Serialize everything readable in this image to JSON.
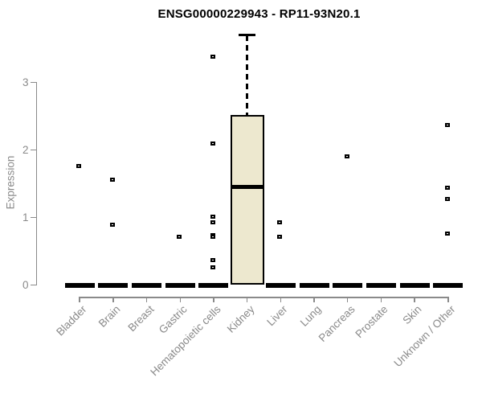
{
  "colors": {
    "box_fill": "#EDE8CF",
    "box_border": "#000000",
    "median": "#000000",
    "axis": "#8a8a8a",
    "tick_text": "#8a8a8a",
    "title_text": "#000000",
    "background": "#ffffff"
  },
  "chart_data": {
    "type": "boxplot",
    "title": "ENSG00000229943 - RP11-93N20.1",
    "xlabel": "",
    "ylabel": "Expression",
    "ylim": [
      0,
      3.7
    ],
    "yticks": [
      0,
      1,
      2,
      3
    ],
    "grid": false,
    "legend": false,
    "categories": [
      "Bladder",
      "Brain",
      "Breast",
      "Gastric",
      "Hematopoietic cells",
      "Kidney",
      "Liver",
      "Lung",
      "Pancreas",
      "Prostate",
      "Skin",
      "Unknown / Other"
    ],
    "series": [
      {
        "category": "Bladder",
        "q1": 0,
        "median": 0,
        "q3": 0,
        "whisker_low": 0,
        "whisker_high": 0,
        "outliers": [
          1.76
        ]
      },
      {
        "category": "Brain",
        "q1": 0,
        "median": 0,
        "q3": 0,
        "whisker_low": 0,
        "whisker_high": 0,
        "outliers": [
          1.56,
          0.89
        ]
      },
      {
        "category": "Breast",
        "q1": 0,
        "median": 0,
        "q3": 0,
        "whisker_low": 0,
        "whisker_high": 0,
        "outliers": []
      },
      {
        "category": "Gastric",
        "q1": 0,
        "median": 0,
        "q3": 0,
        "whisker_low": 0,
        "whisker_high": 0,
        "outliers": [
          0.72
        ]
      },
      {
        "category": "Hematopoietic cells",
        "q1": 0,
        "median": 0,
        "q3": 0,
        "whisker_low": 0,
        "whisker_high": 0,
        "outliers": [
          3.38,
          2.1,
          1.01,
          0.93,
          0.74,
          0.71,
          0.37,
          0.26
        ]
      },
      {
        "category": "Kidney",
        "q1": 0,
        "median": 1.45,
        "q3": 2.52,
        "whisker_low": 0,
        "whisker_high": 3.7,
        "outliers": []
      },
      {
        "category": "Liver",
        "q1": 0,
        "median": 0,
        "q3": 0,
        "whisker_low": 0,
        "whisker_high": 0,
        "outliers": [
          0.93,
          0.71
        ]
      },
      {
        "category": "Lung",
        "q1": 0,
        "median": 0,
        "q3": 0,
        "whisker_low": 0,
        "whisker_high": 0,
        "outliers": []
      },
      {
        "category": "Pancreas",
        "q1": 0,
        "median": 0,
        "q3": 0,
        "whisker_low": 0,
        "whisker_high": 0,
        "outliers": [
          1.9
        ]
      },
      {
        "category": "Prostate",
        "q1": 0,
        "median": 0,
        "q3": 0,
        "whisker_low": 0,
        "whisker_high": 0,
        "outliers": []
      },
      {
        "category": "Skin",
        "q1": 0,
        "median": 0,
        "q3": 0,
        "whisker_low": 0,
        "whisker_high": 0,
        "outliers": []
      },
      {
        "category": "Unknown / Other",
        "q1": 0,
        "median": 0,
        "q3": 0,
        "whisker_low": 0,
        "whisker_high": 0,
        "outliers": [
          2.37,
          1.44,
          1.27,
          0.76
        ]
      }
    ]
  }
}
